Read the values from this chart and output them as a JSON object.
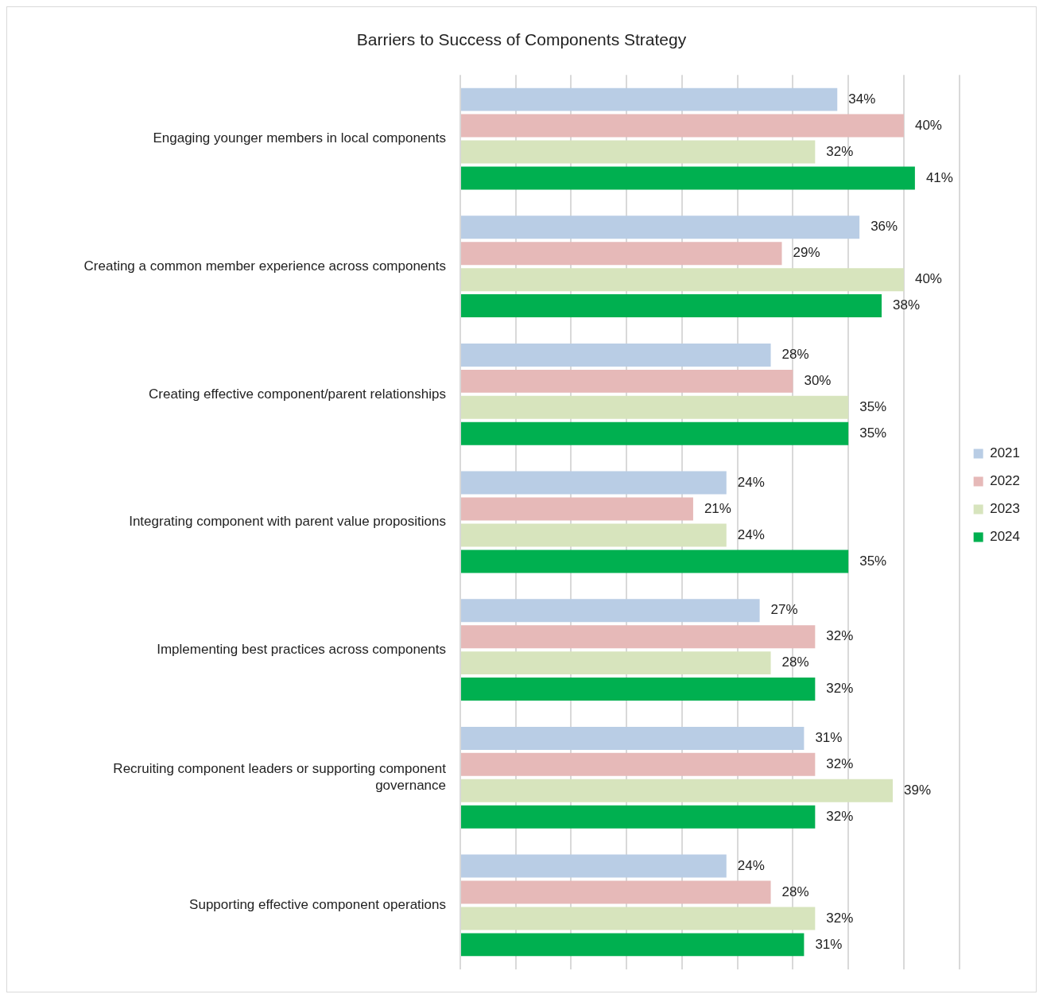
{
  "chart_data": {
    "type": "bar",
    "orientation": "horizontal",
    "title": "Barriers to Success of Components Strategy",
    "categories": [
      "Engaging younger members in local components",
      "Creating a common member experience across components",
      "Creating effective component/parent relationships",
      "Integrating component with parent value propositions",
      "Implementing best practices across components",
      "Recruiting component leaders or supporting component governance",
      "Supporting effective component operations"
    ],
    "series": [
      {
        "name": "2021",
        "color": "#b9cde5",
        "values": [
          34,
          36,
          28,
          24,
          27,
          31,
          24
        ],
        "value_labels": [
          "34%",
          "36%",
          "28%",
          "24%",
          "27%",
          "31%",
          "24%"
        ]
      },
      {
        "name": "2022",
        "color": "#e6b9b8",
        "values": [
          40,
          29,
          30,
          21,
          32,
          32,
          28
        ],
        "value_labels": [
          "40%",
          "29%",
          "30%",
          "21%",
          "32%",
          "32%",
          "28%"
        ]
      },
      {
        "name": "2023",
        "color": "#d7e4bd",
        "values": [
          32,
          40,
          35,
          24,
          28,
          39,
          32
        ],
        "value_labels": [
          "32%",
          "40%",
          "35%",
          "24%",
          "28%",
          "39%",
          "32%"
        ]
      },
      {
        "name": "2024",
        "color": "#00b050",
        "values": [
          41,
          38,
          35,
          35,
          32,
          32,
          31
        ],
        "value_labels": [
          "41%",
          "38%",
          "35%",
          "35%",
          "32%",
          "32%",
          "31%"
        ]
      }
    ],
    "xlim": [
      0,
      45
    ],
    "xticks": [
      {
        "value": 0,
        "label": null
      },
      {
        "value": 5,
        "label": null
      },
      {
        "value": 10,
        "label": null
      },
      {
        "value": 15,
        "label": null
      },
      {
        "value": 20,
        "label": null
      },
      {
        "value": 25,
        "label": null
      },
      {
        "value": 30,
        "label": null
      },
      {
        "value": 35,
        "label": null
      },
      {
        "value": 40,
        "label": null
      },
      {
        "value": 45,
        "label": null
      }
    ],
    "grid": "x",
    "legend": "right",
    "tick_labels": "y"
  }
}
